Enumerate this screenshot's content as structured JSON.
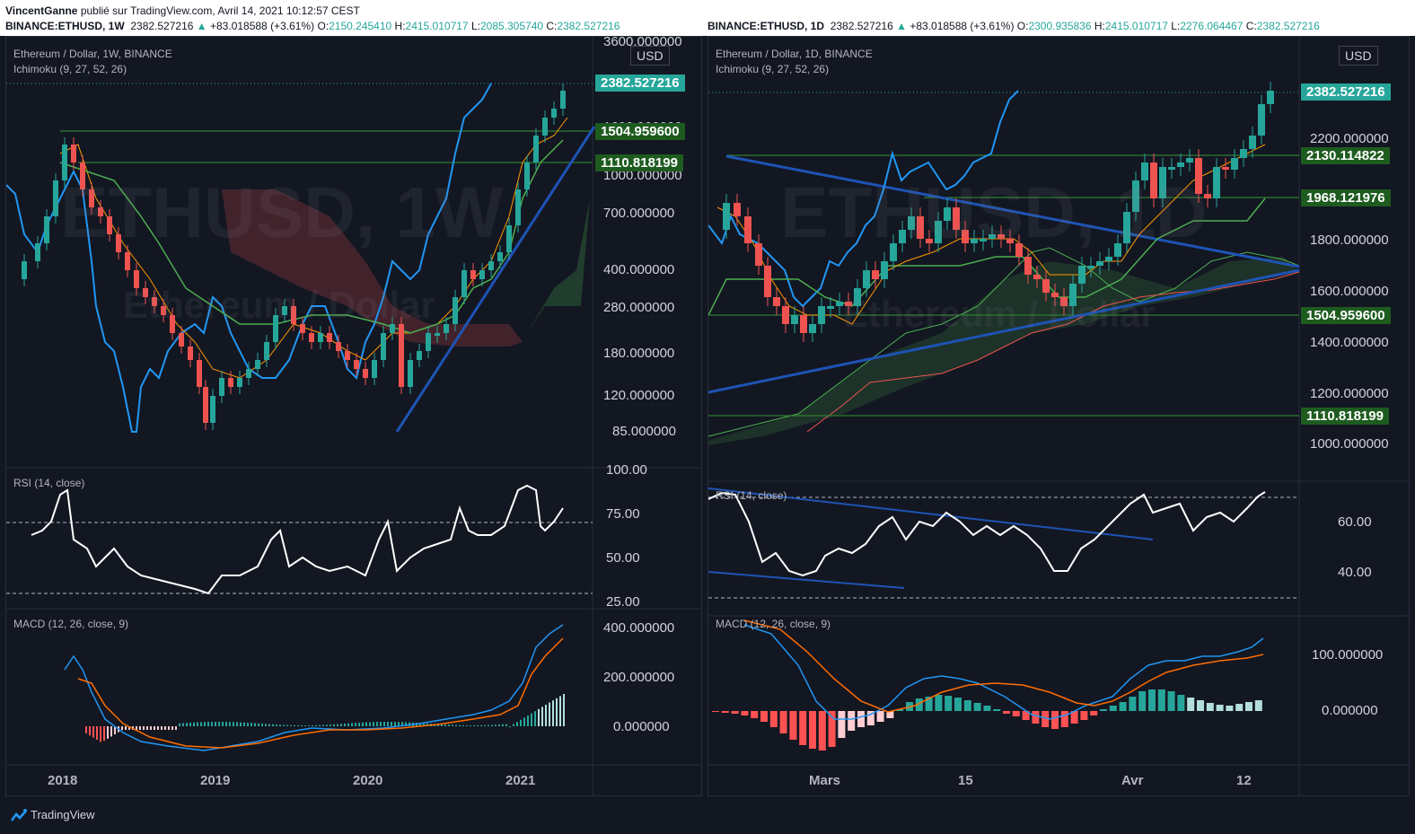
{
  "header": {
    "author": "VincentGanne",
    "publish_text": "publié sur TradingView.com, Avril 14, 2021 10:12:57 CEST",
    "left": {
      "symbol": "BINANCE:ETHUSD, 1W",
      "price": "2382.527216",
      "arrow": "▲",
      "change": "+83.018588 (+3.61%)",
      "o_label": "O:",
      "o_value": "2150.245410",
      "h_label": "H:",
      "h_value": "2415.010717",
      "l_label": "L:",
      "l_value": "2085.305740",
      "c_label": "C:",
      "c_value": "2382.527216"
    },
    "right": {
      "symbol": "BINANCE:ETHUSD, 1D",
      "price": "2382.527216",
      "arrow": "▲",
      "change": "+83.018588 (+3.61%)",
      "o_label": "O:",
      "o_value": "2300.935836",
      "h_label": "H:",
      "h_value": "2415.010717",
      "l_label": "L:",
      "l_value": "2276.064467",
      "c_label": "C:",
      "c_value": "2382.527216"
    }
  },
  "left_panel": {
    "title": "Ethereum / Dollar, 1W, BINANCE",
    "indicator": "Ichimoku (9, 27, 52, 26)",
    "currency": "USD",
    "watermark_big": "ETHUSD, 1W",
    "watermark_small": "Ethereum / Dollar",
    "price_ticks": [
      "3600.000000",
      "1600.000000",
      "1000.000000",
      "700.000000",
      "400.000000",
      "280.000000",
      "180.000000",
      "120.000000",
      "85.000000"
    ],
    "last_price_badge": "2382.527216",
    "level_badges": [
      "1504.959600",
      "1110.818199"
    ],
    "rsi_title": "RSI (14, close)",
    "rsi_ticks": [
      "100.00",
      "75.00",
      "50.00",
      "25.00"
    ],
    "macd_title": "MACD (12, 26, close, 9)",
    "macd_ticks": [
      "400.000000",
      "200.000000",
      "0.000000"
    ],
    "x_labels": [
      "2018",
      "2019",
      "2020",
      "2021"
    ]
  },
  "right_panel": {
    "title": "Ethereum / Dollar, 1D, BINANCE",
    "indicator": "Ichimoku (9, 27, 52, 26)",
    "currency": "USD",
    "watermark_big": "ETHUSD, 1D",
    "watermark_small": "Ethereum / Dollar",
    "price_ticks": [
      "2200.000000",
      "1800.000000",
      "1600.000000",
      "1400.000000",
      "1200.000000",
      "1000.000000"
    ],
    "last_price_badge": "2382.527216",
    "level_badges": [
      "2130.114822",
      "1968.121976",
      "1504.959600",
      "1110.818199"
    ],
    "rsi_title": "RSI (14, close)",
    "rsi_ticks": [
      "60.00",
      "40.00"
    ],
    "macd_title": "MACD (12, 26, close, 9)",
    "macd_ticks": [
      "100.000000",
      "0.000000"
    ],
    "x_labels": [
      "Mars",
      "15",
      "Avr",
      "12"
    ]
  },
  "footer": {
    "brand": "TradingView"
  },
  "colors": {
    "up": "#26a69a",
    "down": "#ef5350",
    "level_green": "#1e5b1f",
    "trend_blue": "#1e53b4",
    "background": "#131722"
  }
}
